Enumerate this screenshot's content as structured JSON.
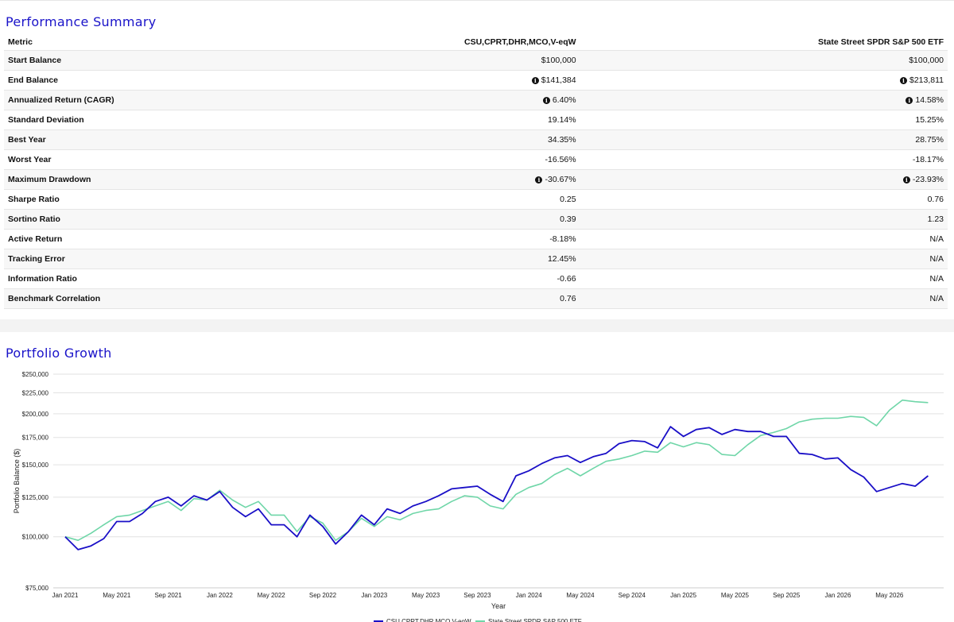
{
  "summary": {
    "title": "Performance Summary",
    "columns": [
      "Metric",
      "CSU,CPRT,DHR,MCO,V-eqW",
      "State Street SPDR S&P 500 ETF"
    ],
    "rows": [
      {
        "metric": "Start Balance",
        "a": "$100,000",
        "b": "$100,000",
        "info_a": false,
        "info_b": false
      },
      {
        "metric": "End Balance",
        "a": "$141,384",
        "b": "$213,811",
        "info_a": true,
        "info_b": true
      },
      {
        "metric": "Annualized Return (CAGR)",
        "a": "6.40%",
        "b": "14.58%",
        "info_a": true,
        "info_b": true
      },
      {
        "metric": "Standard Deviation",
        "a": "19.14%",
        "b": "15.25%",
        "info_a": false,
        "info_b": false
      },
      {
        "metric": "Best Year",
        "a": "34.35%",
        "b": "28.75%",
        "info_a": false,
        "info_b": false
      },
      {
        "metric": "Worst Year",
        "a": "-16.56%",
        "b": "-18.17%",
        "info_a": false,
        "info_b": false
      },
      {
        "metric": "Maximum Drawdown",
        "a": "-30.67%",
        "b": "-23.93%",
        "info_a": true,
        "info_b": true
      },
      {
        "metric": "Sharpe Ratio",
        "a": "0.25",
        "b": "0.76",
        "info_a": false,
        "info_b": false
      },
      {
        "metric": "Sortino Ratio",
        "a": "0.39",
        "b": "1.23",
        "info_a": false,
        "info_b": false
      },
      {
        "metric": "Active Return",
        "a": "-8.18%",
        "b": "N/A",
        "info_a": false,
        "info_b": false
      },
      {
        "metric": "Tracking Error",
        "a": "12.45%",
        "b": "N/A",
        "info_a": false,
        "info_b": false
      },
      {
        "metric": "Information Ratio",
        "a": "-0.66",
        "b": "N/A",
        "info_a": false,
        "info_b": false
      },
      {
        "metric": "Benchmark Correlation",
        "a": "0.76",
        "b": "N/A",
        "info_a": false,
        "info_b": false
      }
    ],
    "info_icon": "info-circle-icon"
  },
  "growth": {
    "title": "Portfolio Growth"
  },
  "chart_data": {
    "type": "line",
    "xlabel": "Year",
    "ylabel": "Portfolio Balance ($)",
    "ylim": [
      75000,
      250000
    ],
    "y_scale": "log",
    "yticks": [
      75000,
      100000,
      125000,
      150000,
      175000,
      200000,
      225000,
      250000
    ],
    "ytick_labels": [
      "$75,000",
      "$100,000",
      "$125,000",
      "$150,000",
      "$175,000",
      "$200,000",
      "$225,000",
      "$250,000"
    ],
    "xticks": [
      "2021-01",
      "2021-05",
      "2021-09",
      "2022-01",
      "2022-05",
      "2022-09",
      "2023-01",
      "2023-05",
      "2023-09",
      "2024-01",
      "2024-05",
      "2024-09",
      "2025-01",
      "2025-05",
      "2025-09",
      "2026-01",
      "2026-05"
    ],
    "xtick_labels": [
      "Jan 2021",
      "May 2021",
      "Sep 2021",
      "Jan 2022",
      "May 2022",
      "Sep 2022",
      "Jan 2023",
      "May 2023",
      "Sep 2023",
      "Jan 2024",
      "May 2024",
      "Sep 2024",
      "Jan 2025",
      "May 2025",
      "Sep 2025",
      "Jan 2026",
      "May 2026"
    ],
    "grid": true,
    "legend_position": "bottom",
    "x": [
      "2021-01",
      "2021-02",
      "2021-03",
      "2021-04",
      "2021-05",
      "2021-06",
      "2021-07",
      "2021-08",
      "2021-09",
      "2021-10",
      "2021-11",
      "2021-12",
      "2022-01",
      "2022-02",
      "2022-03",
      "2022-04",
      "2022-05",
      "2022-06",
      "2022-07",
      "2022-08",
      "2022-09",
      "2022-10",
      "2022-11",
      "2022-12",
      "2023-01",
      "2023-02",
      "2023-03",
      "2023-04",
      "2023-05",
      "2023-06",
      "2023-07",
      "2023-08",
      "2023-09",
      "2023-10",
      "2023-11",
      "2023-12",
      "2024-01",
      "2024-02",
      "2024-03",
      "2024-04",
      "2024-05",
      "2024-06",
      "2024-07",
      "2024-08",
      "2024-09",
      "2024-10",
      "2024-11",
      "2024-12",
      "2025-01",
      "2025-02",
      "2025-03",
      "2025-04",
      "2025-05",
      "2025-06",
      "2025-07",
      "2025-08",
      "2025-09",
      "2025-10",
      "2025-11",
      "2025-12",
      "2026-01",
      "2026-02",
      "2026-03",
      "2026-04",
      "2026-05",
      "2026-06",
      "2026-07",
      "2026-08"
    ],
    "series": [
      {
        "name": "CSU,CPRT,DHR,MCO,V-eqW",
        "color": "#1a0fc7",
        "values": [
          100000,
          93000,
          95000,
          99000,
          109000,
          109000,
          114000,
          122000,
          125000,
          119000,
          126000,
          123000,
          129000,
          118000,
          112000,
          117000,
          107000,
          107000,
          100000,
          113000,
          106000,
          96000,
          103000,
          113000,
          107000,
          117000,
          114000,
          119000,
          122000,
          126000,
          131000,
          132000,
          133000,
          127000,
          122000,
          141000,
          145000,
          151000,
          156000,
          158000,
          152000,
          157000,
          160000,
          169000,
          172000,
          171000,
          165000,
          186000,
          176000,
          183000,
          185000,
          178000,
          183000,
          181000,
          181000,
          176000,
          176000,
          160000,
          159000,
          155000,
          156000,
          146000,
          140000,
          129000,
          132000,
          135000,
          133000,
          141000
        ]
      },
      {
        "name": "State Street SPDR S&P 500 ETF",
        "color": "#6fd6a8",
        "values": [
          100000,
          98000,
          102000,
          107000,
          112000,
          113000,
          116000,
          119000,
          122000,
          116000,
          124000,
          123000,
          130000,
          123000,
          118000,
          122000,
          113000,
          113000,
          103000,
          112000,
          108000,
          98000,
          103000,
          111000,
          106000,
          112000,
          110000,
          114000,
          116000,
          117000,
          122000,
          126000,
          125000,
          119000,
          117000,
          127000,
          132000,
          135000,
          142000,
          147000,
          141000,
          147000,
          153000,
          155000,
          158000,
          162000,
          161000,
          170000,
          166000,
          170000,
          168000,
          159000,
          158000,
          168000,
          177000,
          180000,
          184000,
          191000,
          194000,
          195000,
          195000,
          197000,
          196000,
          187000,
          204000,
          216000,
          214000,
          213000
        ]
      }
    ]
  }
}
